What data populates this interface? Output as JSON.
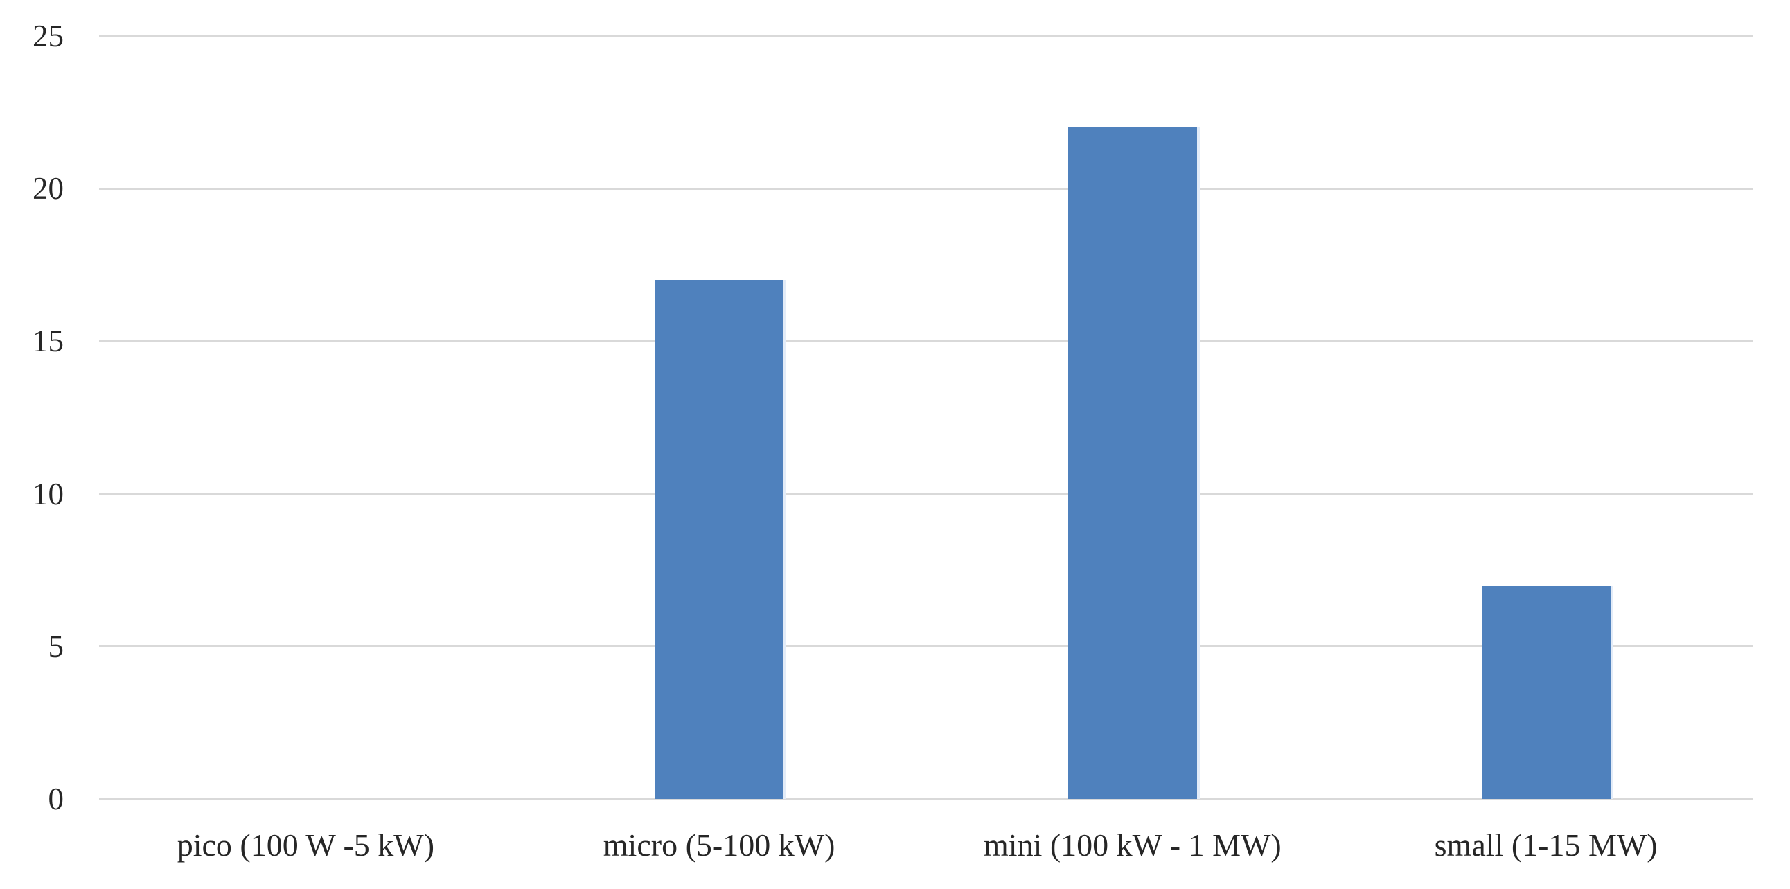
{
  "chart_data": {
    "type": "bar",
    "categories": [
      "pico (100 W -5 kW)",
      "micro (5-100 kW)",
      "mini (100 kW - 1 MW)",
      "small (1-15 MW)"
    ],
    "values": [
      0,
      17,
      22,
      7
    ],
    "title": "",
    "xlabel": "",
    "ylabel": "",
    "ylim": [
      0,
      25
    ],
    "yticks": [
      0,
      5,
      10,
      15,
      20,
      25
    ],
    "grid": true,
    "legend": false,
    "bar_color": "#4f81bd",
    "bar_edge_color": "#e3ecf8",
    "gridline_color": "#d9d9d9",
    "text_color": "#262626",
    "background_color": "#ffffff"
  }
}
